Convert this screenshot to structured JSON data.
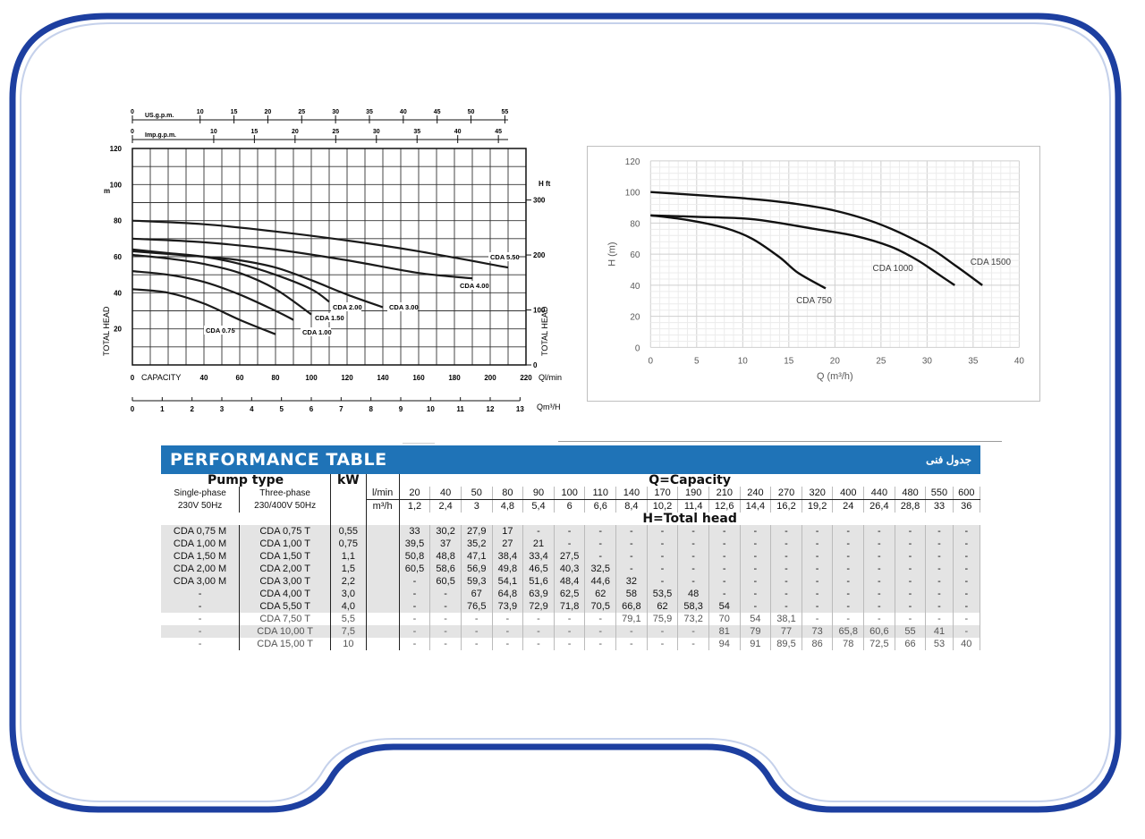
{
  "colors": {
    "frame": "#1d3fa0",
    "table_header": "#1f73b7",
    "stripe": "#e4e4e4",
    "curve": "#1a1a1a"
  },
  "chart_data": [
    {
      "type": "line",
      "xlabel": "CAPACITY",
      "ylabel": "TOTAL HEAD",
      "x_unit": "Ql/min",
      "x_unit2": "Qm³/H",
      "y_unit": "m",
      "y2_unit": "H ft",
      "top_axes": [
        {
          "label": "US.g.p.m.",
          "ticks": [
            "0",
            "10",
            "15",
            "20",
            "25",
            "30",
            "35",
            "40",
            "45",
            "50",
            "55"
          ]
        },
        {
          "label": "Imp.g.p.m.",
          "ticks": [
            "0",
            "10",
            "15",
            "20",
            "25",
            "30",
            "35",
            "40",
            "45"
          ]
        }
      ],
      "x_ticks": [
        "0",
        "40",
        "60",
        "80",
        "100",
        "120",
        "140",
        "160",
        "180",
        "200",
        "220"
      ],
      "x_zero_label": "0",
      "x2_ticks": [
        "0",
        "1",
        "2",
        "3",
        "4",
        "5",
        "6",
        "7",
        "8",
        "9",
        "10",
        "11",
        "12",
        "13"
      ],
      "y_ticks": [
        "0",
        "20",
        "40",
        "60",
        "80",
        "100",
        "120"
      ],
      "y2_ticks": [
        "0",
        "100",
        "200",
        "300"
      ],
      "xlim": [
        0,
        220
      ],
      "ylim": [
        0,
        120
      ],
      "grid": true,
      "series": [
        {
          "name": "CDA 0.75",
          "points": [
            [
              0,
              42
            ],
            [
              20,
              40
            ],
            [
              40,
              34
            ],
            [
              60,
              25
            ],
            [
              80,
              17
            ]
          ]
        },
        {
          "name": "CDA 1.00",
          "points": [
            [
              0,
              52
            ],
            [
              20,
              50
            ],
            [
              40,
              46
            ],
            [
              60,
              39
            ],
            [
              80,
              30
            ],
            [
              90,
              25
            ]
          ]
        },
        {
          "name": "CDA 1.50",
          "points": [
            [
              0,
              61
            ],
            [
              20,
              59
            ],
            [
              40,
              56
            ],
            [
              60,
              51
            ],
            [
              80,
              42
            ],
            [
              100,
              28
            ]
          ]
        },
        {
          "name": "CDA 2.00",
          "points": [
            [
              0,
              64
            ],
            [
              20,
              62
            ],
            [
              40,
              60
            ],
            [
              60,
              56
            ],
            [
              80,
              50
            ],
            [
              100,
              42
            ],
            [
              110,
              35
            ]
          ]
        },
        {
          "name": "CDA 3.00",
          "points": [
            [
              0,
              63
            ],
            [
              40,
              60
            ],
            [
              60,
              58
            ],
            [
              80,
              54
            ],
            [
              100,
              47
            ],
            [
              120,
              39
            ],
            [
              140,
              32
            ]
          ]
        },
        {
          "name": "CDA 4.00",
          "points": [
            [
              0,
              70
            ],
            [
              40,
              68
            ],
            [
              80,
              64
            ],
            [
              120,
              58
            ],
            [
              160,
              51
            ],
            [
              190,
              48
            ]
          ]
        },
        {
          "name": "CDA 5.50",
          "points": [
            [
              0,
              80
            ],
            [
              40,
              78
            ],
            [
              80,
              74
            ],
            [
              120,
              69
            ],
            [
              160,
              63
            ],
            [
              210,
              54
            ]
          ]
        }
      ]
    },
    {
      "type": "line",
      "xlabel": "Q (m³/h)",
      "ylabel": "H (m)",
      "x_ticks": [
        "0",
        "5",
        "10",
        "15",
        "20",
        "25",
        "30",
        "35",
        "40"
      ],
      "y_ticks": [
        "0",
        "20",
        "40",
        "60",
        "80",
        "100",
        "120"
      ],
      "xlim": [
        0,
        40
      ],
      "ylim": [
        0,
        120
      ],
      "grid": true,
      "series": [
        {
          "name": "CDA 750",
          "points": [
            [
              0,
              85
            ],
            [
              4,
              82
            ],
            [
              8,
              77
            ],
            [
              11,
              70
            ],
            [
              14,
              58
            ],
            [
              16,
              48
            ],
            [
              19,
              38
            ]
          ]
        },
        {
          "name": "CDA 1000",
          "points": [
            [
              0,
              85
            ],
            [
              5,
              84
            ],
            [
              10,
              83
            ],
            [
              13,
              81
            ],
            [
              18,
              76
            ],
            [
              22,
              72
            ],
            [
              26,
              65
            ],
            [
              29,
              56
            ],
            [
              31,
              48
            ],
            [
              33,
              40
            ]
          ]
        },
        {
          "name": "CDA 1500",
          "points": [
            [
              0,
              100
            ],
            [
              5,
              98
            ],
            [
              10,
              96
            ],
            [
              15,
              93
            ],
            [
              20,
              88
            ],
            [
              25,
              79
            ],
            [
              30,
              65
            ],
            [
              33,
              53
            ],
            [
              36,
              40
            ]
          ]
        }
      ]
    }
  ],
  "table": {
    "title": "PERFORMANCE TABLE",
    "title_fa": "جدول فنی",
    "pump_type_label": "Pump type",
    "single_phase_label": "Single-phase",
    "single_phase_voltage": "230V 50Hz",
    "three_phase_label": "Three-phase",
    "three_phase_voltage": "230/400V 50Hz",
    "kw_label": "kW",
    "capacity_label": "Q=Capacity",
    "head_label": "H=Total head",
    "unit_lmin": "l/min",
    "unit_m3h": "m³/h",
    "lmin": [
      "20",
      "40",
      "50",
      "80",
      "90",
      "100",
      "110",
      "140",
      "170",
      "190",
      "210",
      "240",
      "270",
      "320",
      "400",
      "440",
      "480",
      "550",
      "600"
    ],
    "m3h": [
      "1,2",
      "2,4",
      "3",
      "4,8",
      "5,4",
      "6",
      "6,6",
      "8,4",
      "10,2",
      "11,4",
      "12,6",
      "14,4",
      "16,2",
      "19,2",
      "24",
      "26,4",
      "28,8",
      "33",
      "36"
    ],
    "rows": [
      {
        "single": "CDA 0,75 M",
        "three": "CDA 0,75 T",
        "kw": "0,55",
        "values": [
          "33",
          "30,2",
          "27,9",
          "17",
          "-",
          "-",
          "-",
          "-",
          "-",
          "-",
          "-",
          "-",
          "-",
          "-",
          "-",
          "-",
          "-",
          "-",
          "-"
        ]
      },
      {
        "single": "CDA 1,00 M",
        "three": "CDA 1,00 T",
        "kw": "0,75",
        "values": [
          "39,5",
          "37",
          "35,2",
          "27",
          "21",
          "-",
          "-",
          "-",
          "-",
          "-",
          "-",
          "-",
          "-",
          "-",
          "-",
          "-",
          "-",
          "-",
          "-"
        ]
      },
      {
        "single": "CDA 1,50 M",
        "three": "CDA 1,50 T",
        "kw": "1,1",
        "values": [
          "50,8",
          "48,8",
          "47,1",
          "38,4",
          "33,4",
          "27,5",
          "-",
          "-",
          "-",
          "-",
          "-",
          "-",
          "-",
          "-",
          "-",
          "-",
          "-",
          "-",
          "-"
        ]
      },
      {
        "single": "CDA 2,00 M",
        "three": "CDA 2,00 T",
        "kw": "1,5",
        "values": [
          "60,5",
          "58,6",
          "56,9",
          "49,8",
          "46,5",
          "40,3",
          "32,5",
          "-",
          "-",
          "-",
          "-",
          "-",
          "-",
          "-",
          "-",
          "-",
          "-",
          "-",
          "-"
        ]
      },
      {
        "single": "CDA 3,00 M",
        "three": "CDA 3,00 T",
        "kw": "2,2",
        "values": [
          "-",
          "60,5",
          "59,3",
          "54,1",
          "51,6",
          "48,4",
          "44,6",
          "32",
          "-",
          "-",
          "-",
          "-",
          "-",
          "-",
          "-",
          "-",
          "-",
          "-",
          "-"
        ]
      },
      {
        "single": "-",
        "three": "CDA 4,00 T",
        "kw": "3,0",
        "values": [
          "-",
          "-",
          "67",
          "64,8",
          "63,9",
          "62,5",
          "62",
          "58",
          "53,5",
          "48",
          "-",
          "-",
          "-",
          "-",
          "-",
          "-",
          "-",
          "-",
          "-"
        ]
      },
      {
        "single": "-",
        "three": "CDA 5,50 T",
        "kw": "4,0",
        "values": [
          "-",
          "-",
          "76,5",
          "73,9",
          "72,9",
          "71,8",
          "70,5",
          "66,8",
          "62",
          "58,3",
          "54",
          "-",
          "-",
          "-",
          "-",
          "-",
          "-",
          "-",
          "-"
        ]
      },
      {
        "single": "-",
        "three": "CDA 7,50 T",
        "kw": "5,5",
        "values": [
          "-",
          "-",
          "-",
          "-",
          "-",
          "-",
          "-",
          "79,1",
          "75,9",
          "73,2",
          "70",
          "54",
          "38,1",
          "-",
          "-",
          "-",
          "-",
          "-",
          "-"
        ]
      },
      {
        "single": "-",
        "three": "CDA 10,00 T",
        "kw": "7,5",
        "values": [
          "-",
          "-",
          "-",
          "-",
          "-",
          "-",
          "-",
          "-",
          "-",
          "-",
          "81",
          "79",
          "77",
          "73",
          "65,8",
          "60,6",
          "55",
          "41",
          "-"
        ]
      },
      {
        "single": "-",
        "three": "CDA 15,00 T",
        "kw": "10",
        "values": [
          "-",
          "-",
          "-",
          "-",
          "-",
          "-",
          "-",
          "-",
          "-",
          "-",
          "94",
          "91",
          "89,5",
          "86",
          "78",
          "72,5",
          "66",
          "53",
          "40"
        ]
      }
    ]
  }
}
